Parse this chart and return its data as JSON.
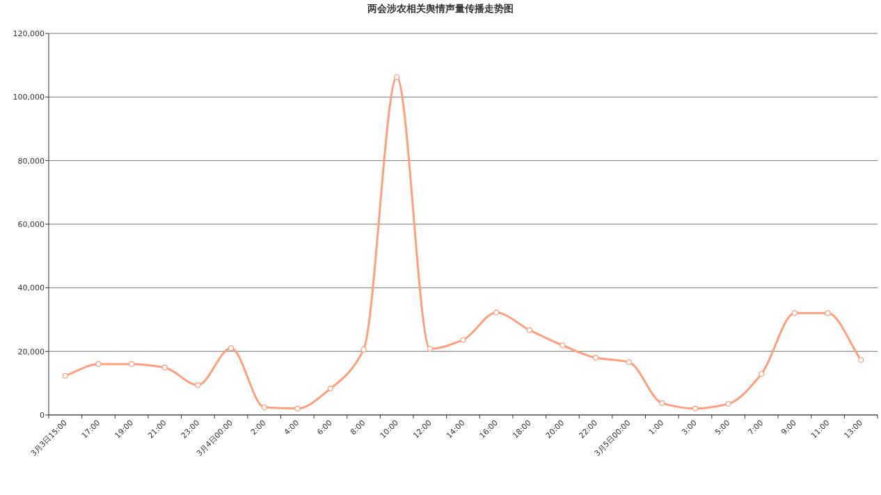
{
  "chart_data": {
    "type": "line",
    "title": "两会涉农相关舆情声量传播走势图",
    "categories": [
      "3月3日15:00",
      "17:00",
      "19:00",
      "21:00",
      "23:00",
      "3月4日00:00",
      "2:00",
      "4:00",
      "6:00",
      "8:00",
      "10:00",
      "12:00",
      "14:00",
      "16:00",
      "18:00",
      "20:00",
      "22:00",
      "3月5日00:00",
      "1:00",
      "3:00",
      "5:00",
      "7:00",
      "9:00",
      "11:00",
      "13:00"
    ],
    "series": [
      {
        "color": "#ff9f7f",
        "values": [
          12300,
          16000,
          16000,
          14900,
          9400,
          21000,
          2400,
          2000,
          8300,
          20600,
          106200,
          20800,
          23600,
          32200,
          26700,
          21900,
          18000,
          16600,
          3700,
          2000,
          3500,
          12900,
          32000,
          32000,
          17300
        ]
      }
    ],
    "ylim": [
      0,
      120000
    ],
    "yticks": [
      0,
      {
        "value": 20000,
        "label": "20,000"
      },
      {
        "value": 40000,
        "label": "40,000"
      },
      {
        "value": 60000,
        "label": "60,000"
      },
      {
        "value": 80000,
        "label": "80,000"
      },
      {
        "value": 100000,
        "label": "100,000"
      },
      {
        "value": 120000,
        "label": "120,000"
      }
    ],
    "grid": "y",
    "marker": "circle",
    "line_style": "solid"
  }
}
